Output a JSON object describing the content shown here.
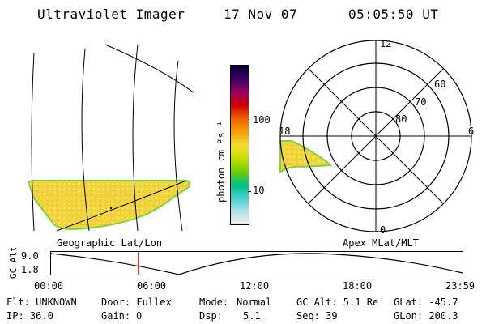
{
  "header": {
    "instrument": "Ultraviolet Imager",
    "date": "17 Nov 07",
    "time": "05:05:50 UT"
  },
  "colors": {
    "emission_fill": "#f2d43a",
    "emission_edge": "#7ad43a",
    "marker_line": "#cc0000"
  },
  "colorbar": {
    "label": "photon cm⁻²s⁻¹",
    "ticks": [
      "100",
      "10"
    ],
    "stops": [
      "#000033",
      "#3a0066",
      "#9a0060",
      "#d00000",
      "#f26000",
      "#f2a000",
      "#f2dc30",
      "#c8e000",
      "#70d000",
      "#00c080",
      "#40d0d0",
      "#b0e0e8",
      "#f0f0f0"
    ]
  },
  "geo_map": {
    "label": "Geographic Lat/Lon"
  },
  "polar_map": {
    "label": "Apex MLat/MLT",
    "mlt_labels": {
      "top": "12",
      "left": "18",
      "right": "6",
      "bottom": "0"
    },
    "lat_labels": [
      "60",
      "70",
      "80"
    ]
  },
  "altitude_plot": {
    "ylabel": "GC Alt",
    "yticks": [
      "9.0",
      "1.8"
    ],
    "xticks": [
      "00:00",
      "06:00",
      "12:00",
      "18:00",
      "23:59"
    ],
    "marker_time_hours": 5.1
  },
  "info": {
    "row1": {
      "flt": "Flt: UNKNOWN",
      "door": "Door: Fullex",
      "mode_label": "Mode:",
      "mode_value": "Normal",
      "gcalt": "GC Alt: 5.1 Re",
      "glat": "GLat: -45.7"
    },
    "row2": {
      "ip": "IP: 36.0",
      "gain_label": "Gain:",
      "gain_value": "0",
      "dsp_label": "Dsp:",
      "dsp_value": "5.1",
      "seq": "Seq: 39",
      "glon": "GLon: 200.3"
    }
  }
}
